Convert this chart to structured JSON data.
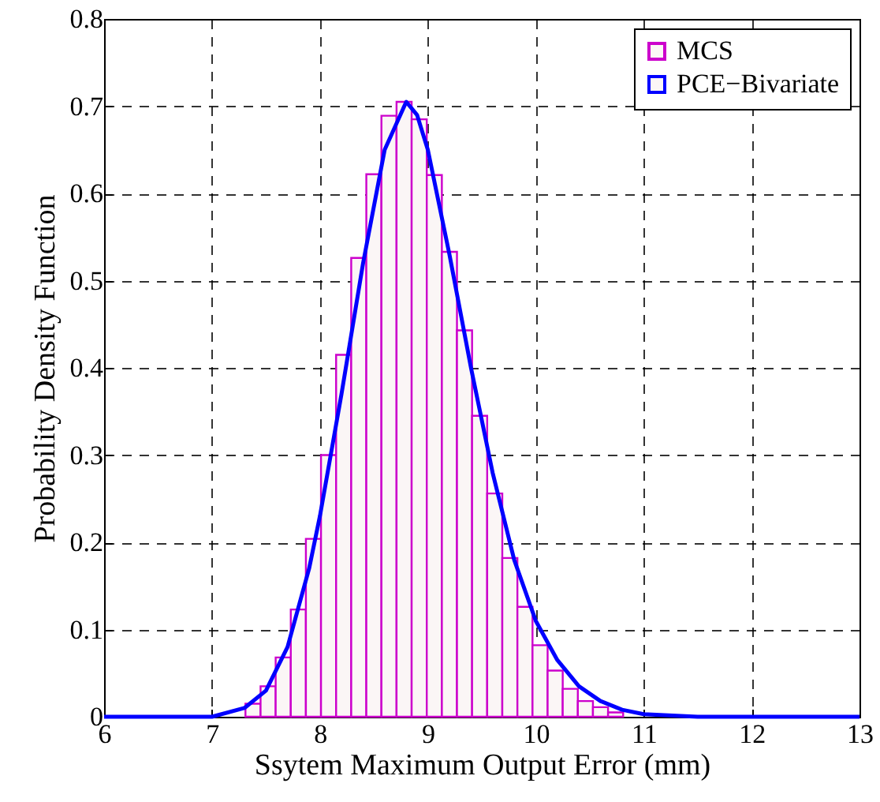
{
  "chart_data": {
    "type": "histogram",
    "xlabel": "Ssytem Maximum Output Error (mm)",
    "ylabel": "Probability Density Function",
    "bins": [
      7.31,
      7.45,
      7.59,
      7.73,
      7.87,
      8.01,
      8.15,
      8.29,
      8.43,
      8.57,
      8.71,
      8.85,
      8.99,
      9.13,
      9.27,
      9.41,
      9.55,
      9.69,
      9.83,
      9.97,
      10.11,
      10.25,
      10.39,
      10.53,
      10.67,
      10.81
    ],
    "series": [
      {
        "name": "MCS",
        "color": "#cc00cc",
        "values": [
          0.015,
          0.035,
          0.068,
          0.123,
          0.204,
          0.3,
          0.415,
          0.526,
          0.622,
          0.689,
          0.705,
          0.685,
          0.621,
          0.533,
          0.443,
          0.345,
          0.256,
          0.182,
          0.126,
          0.082,
          0.053,
          0.032,
          0.018,
          0.011,
          0.005
        ]
      },
      {
        "name": "PCE−Bivariate",
        "type": "line",
        "color": "#0000ff",
        "x": [
          6,
          7,
          7.3,
          7.5,
          7.7,
          7.9,
          8.0,
          8.2,
          8.4,
          8.6,
          8.8,
          8.9,
          9.0,
          9.2,
          9.4,
          9.6,
          9.8,
          10.0,
          10.2,
          10.4,
          10.6,
          10.8,
          11,
          11.5,
          13
        ],
        "values": [
          0,
          0,
          0.01,
          0.03,
          0.08,
          0.17,
          0.23,
          0.37,
          0.52,
          0.65,
          0.705,
          0.69,
          0.65,
          0.53,
          0.4,
          0.28,
          0.18,
          0.11,
          0.065,
          0.035,
          0.018,
          0.008,
          0.003,
          0,
          0
        ]
      }
    ],
    "xlim": [
      6,
      13
    ],
    "xticks": [
      6,
      7,
      8,
      9,
      10,
      11,
      12,
      13
    ],
    "ylim": [
      0,
      0.8
    ],
    "yticks": [
      0,
      0.1,
      0.2,
      0.3,
      0.4,
      0.5,
      0.6,
      0.7,
      0.8
    ],
    "grid": true,
    "legend": "top right"
  }
}
